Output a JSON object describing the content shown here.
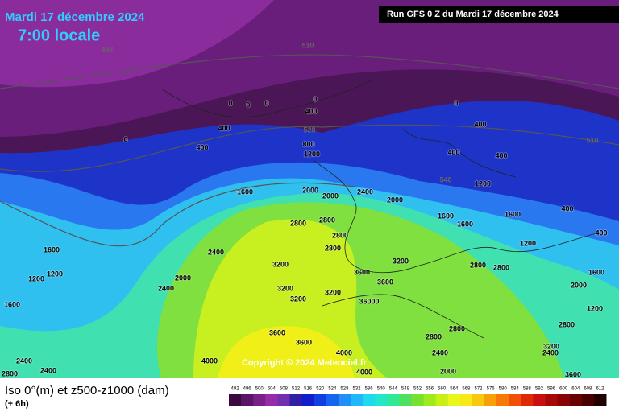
{
  "header": {
    "date": "Mardi 17 décembre 2024",
    "time": "7:00 locale",
    "run": "Run GFS 0 Z du Mardi 17 décembre 2024"
  },
  "map": {
    "copyright": "Copyright © 2024 Meteociel.fr",
    "geopotential_labels": [
      492,
      510,
      528,
      510,
      540
    ],
    "labels": [
      0,
      0,
      0,
      0,
      400,
      400,
      0,
      400,
      800,
      1200,
      0,
      400,
      400,
      400,
      1200,
      1600,
      2000,
      2400,
      2000,
      2000,
      2800,
      2800,
      1600,
      1600,
      1600,
      2400,
      3200,
      2000,
      3200,
      3200,
      3200,
      3600,
      3600,
      36000,
      3600,
      3600,
      4000,
      4000,
      4000,
      1600,
      1200,
      1200,
      1600,
      2400,
      2400,
      2800,
      2400,
      2800,
      2800,
      2400,
      2000,
      3200,
      2400,
      3600,
      2800,
      2000,
      1600,
      1200,
      400,
      400,
      2800,
      2800,
      1200,
      2800,
      2800,
      3200
    ]
  },
  "legend": {
    "title": "Iso 0°(m) et z500-z1000 (dam)",
    "step": "(+ 6h)",
    "ticks": [
      492,
      496,
      500,
      504,
      508,
      512,
      516,
      520,
      524,
      528,
      532,
      536,
      540,
      544,
      548,
      552,
      556,
      560,
      564,
      568,
      572,
      576,
      580,
      584,
      588,
      592,
      596,
      600,
      604,
      608,
      612
    ],
    "colors": [
      "#3a0a3e",
      "#5a1666",
      "#7a2088",
      "#962ca8",
      "#7030b0",
      "#3020a8",
      "#1020c8",
      "#1040e0",
      "#1864f0",
      "#2090f8",
      "#20b8f8",
      "#20d8f0",
      "#20e8c8",
      "#30e898",
      "#50e060",
      "#78e030",
      "#a0e820",
      "#c8f018",
      "#e8f818",
      "#f8e818",
      "#f8c810",
      "#f8a008",
      "#f87808",
      "#f05008",
      "#e02808",
      "#c81010",
      "#a80808",
      "#880404",
      "#680202",
      "#480000",
      "#200000"
    ]
  }
}
